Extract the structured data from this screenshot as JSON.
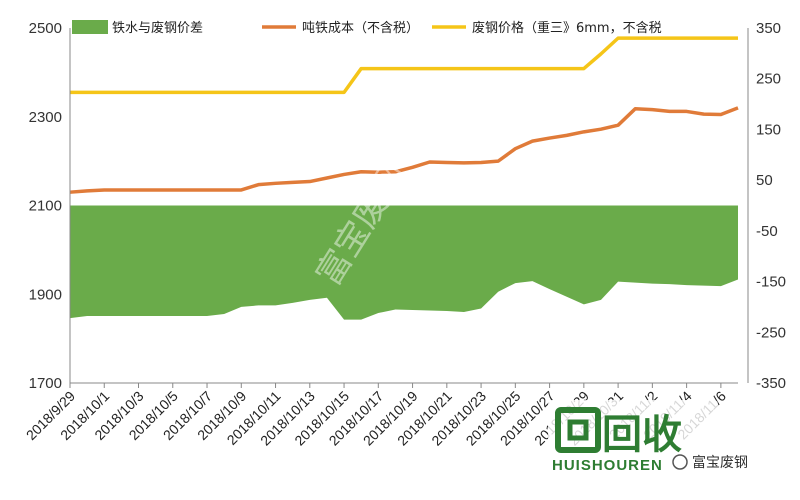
{
  "chart_data": {
    "type": "area",
    "left_axis": {
      "ylim": [
        1700,
        2500
      ],
      "ticks": [
        1700,
        1900,
        2100,
        2300,
        2500
      ]
    },
    "right_axis": {
      "ylim": [
        -350,
        350
      ],
      "ticks": [
        -350,
        -250,
        -150,
        -50,
        50,
        150,
        250,
        350
      ]
    },
    "x_tick_labels": [
      "2018/9/29",
      "2018/10/1",
      "2018/10/3",
      "2018/10/5",
      "2018/10/7",
      "2018/10/9",
      "2018/10/11",
      "2018/10/13",
      "2018/10/15",
      "2018/10/17",
      "2018/10/19",
      "2018/10/21",
      "2018/10/23",
      "2018/10/25",
      "2018/10/27",
      "2018/10/29",
      "2018/10/31",
      "2018/11/2",
      "2018/11/4",
      "2018/11/6"
    ],
    "series": [
      {
        "name": "铁水与废钢价差",
        "axis": "right",
        "chart": "area",
        "color": "#6aab4a",
        "x": [
          0,
          1,
          2,
          3,
          4,
          5,
          6,
          7,
          8,
          9,
          10,
          11,
          12,
          13,
          14,
          15,
          16,
          17,
          18,
          19,
          20,
          21,
          22,
          23,
          24,
          25,
          26,
          27,
          28,
          29,
          30,
          31,
          32,
          33,
          34,
          35,
          36,
          37,
          38,
          39
        ],
        "values": [
          -222,
          -218,
          -218,
          -218,
          -218,
          -218,
          -218,
          -218,
          -218,
          -214,
          -200,
          -197,
          -197,
          -192,
          -186,
          -182,
          -225,
          -225,
          -212,
          -205,
          -206,
          -207,
          -208,
          -210,
          -203,
          -170,
          -153,
          -149,
          -165,
          -180,
          -195,
          -186,
          -150,
          -152,
          -154,
          -155,
          -157,
          -158,
          -159,
          -146
        ]
      },
      {
        "name": "吨铁成本（不含税）",
        "axis": "left",
        "chart": "line",
        "color": "#e07b39",
        "x": [
          0,
          1,
          2,
          3,
          4,
          5,
          6,
          7,
          8,
          9,
          10,
          11,
          12,
          13,
          14,
          15,
          16,
          17,
          18,
          19,
          20,
          21,
          22,
          23,
          24,
          25,
          26,
          27,
          28,
          29,
          30,
          31,
          32,
          33,
          34,
          35,
          36,
          37,
          38,
          39
        ],
        "values": [
          2130,
          2133,
          2135,
          2135,
          2135,
          2135,
          2135,
          2135,
          2135,
          2135,
          2135,
          2147,
          2150,
          2152,
          2154,
          2162,
          2170,
          2176,
          2175,
          2176,
          2186,
          2198,
          2197,
          2196,
          2197,
          2200,
          2228,
          2245,
          2252,
          2258,
          2266,
          2272,
          2281,
          2318,
          2316,
          2312,
          2312,
          2306,
          2305,
          2320
        ]
      },
      {
        "name": "废钢价格（重三》6mm，不含税",
        "axis": "right",
        "chart": "line",
        "color": "#f5c518",
        "x": [
          0,
          1,
          2,
          3,
          4,
          5,
          6,
          7,
          8,
          9,
          10,
          11,
          12,
          13,
          14,
          15,
          16,
          17,
          18,
          19,
          20,
          21,
          22,
          23,
          24,
          25,
          26,
          27,
          28,
          29,
          30,
          31,
          32,
          33,
          34,
          35,
          36,
          37,
          38,
          39
        ],
        "values": [
          223,
          223,
          223,
          223,
          223,
          223,
          223,
          223,
          223,
          223,
          223,
          223,
          223,
          223,
          223,
          223,
          223,
          270,
          270,
          270,
          270,
          270,
          270,
          270,
          270,
          270,
          270,
          270,
          270,
          270,
          270,
          299,
          330,
          330,
          330,
          330,
          330,
          330,
          330,
          330
        ]
      }
    ],
    "legend_position": "top",
    "grid": false
  },
  "watermark": {
    "text": "富宝废钢"
  },
  "logo": {
    "big_text": "回收",
    "sub_text": "HUISHOUREN",
    "tag_text": "富宝废钢"
  }
}
